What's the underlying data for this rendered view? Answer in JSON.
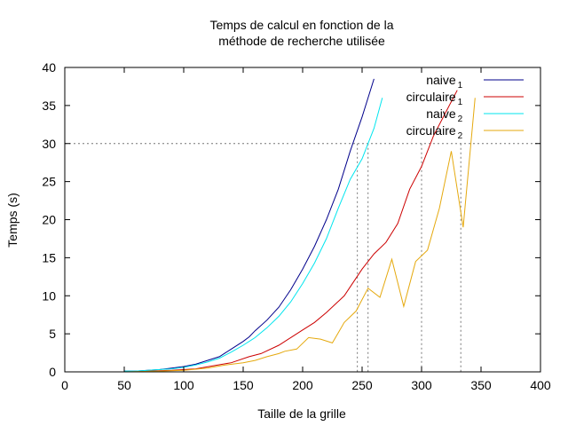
{
  "chart_data": {
    "type": "line",
    "title": "Temps de calcul en fonction de la",
    "subtitle": "méthode de recherche utilisée",
    "xlabel": "Taille de la grille",
    "ylabel": "Temps (s)",
    "xlim": [
      0,
      400
    ],
    "ylim": [
      0,
      40
    ],
    "xticks": [
      0,
      50,
      100,
      150,
      200,
      250,
      300,
      350,
      400
    ],
    "yticks": [
      0,
      5,
      10,
      15,
      20,
      25,
      30,
      35,
      40
    ],
    "grid": false,
    "legend_position": "top-right",
    "reference_lines": {
      "horizontal_y": 30,
      "vertical_x": [
        246,
        255,
        300,
        333
      ]
    },
    "series": [
      {
        "name": "naive",
        "subscript": "1",
        "color": "#00008b",
        "x": [
          50,
          60,
          70,
          80,
          90,
          100,
          110,
          120,
          130,
          140,
          150,
          155,
          160,
          170,
          180,
          190,
          200,
          210,
          220,
          230,
          240,
          250,
          260
        ],
        "y": [
          0.1,
          0.1,
          0.2,
          0.3,
          0.5,
          0.7,
          1.0,
          1.5,
          2.0,
          3.0,
          4.0,
          4.6,
          5.4,
          6.8,
          8.5,
          10.8,
          13.5,
          16.5,
          20.0,
          24.0,
          29.0,
          33.5,
          38.5
        ]
      },
      {
        "name": "circulaire",
        "subscript": "1",
        "color": "#cc0000",
        "x": [
          50,
          70,
          90,
          110,
          125,
          140,
          155,
          165,
          180,
          190,
          200,
          210,
          220,
          235,
          250,
          260,
          270,
          280,
          290,
          300,
          310,
          320,
          330
        ],
        "y": [
          0.0,
          0.1,
          0.2,
          0.4,
          0.8,
          1.2,
          2.0,
          2.4,
          3.5,
          4.5,
          5.5,
          6.5,
          7.8,
          10.0,
          13.5,
          15.5,
          17.0,
          19.5,
          24.0,
          27.0,
          31.0,
          34.0,
          37.0
        ]
      },
      {
        "name": "naive",
        "subscript": "2",
        "color": "#00e5ee",
        "x": [
          50,
          60,
          70,
          80,
          90,
          100,
          110,
          120,
          130,
          140,
          150,
          160,
          170,
          180,
          190,
          200,
          210,
          220,
          230,
          240,
          250,
          260,
          267
        ],
        "y": [
          0.1,
          0.1,
          0.2,
          0.3,
          0.4,
          0.6,
          0.9,
          1.3,
          1.8,
          2.6,
          3.5,
          4.5,
          5.8,
          7.3,
          9.2,
          11.6,
          14.3,
          17.5,
          21.5,
          25.3,
          28.0,
          32.0,
          36.0
        ]
      },
      {
        "name": "circulaire",
        "subscript": "2",
        "color": "#e5a90e",
        "x": [
          50,
          80,
          100,
          120,
          135,
          150,
          160,
          170,
          180,
          185,
          195,
          205,
          215,
          225,
          235,
          245,
          255,
          265,
          275,
          285,
          295,
          305,
          315,
          325,
          335,
          345
        ],
        "y": [
          0.0,
          0.1,
          0.2,
          0.5,
          0.9,
          1.2,
          1.5,
          2.0,
          2.4,
          2.7,
          3.0,
          4.5,
          4.3,
          3.8,
          6.5,
          8.0,
          11.0,
          9.8,
          14.8,
          8.6,
          14.5,
          16.0,
          21.5,
          29.0,
          19.0,
          36.0
        ]
      }
    ]
  }
}
